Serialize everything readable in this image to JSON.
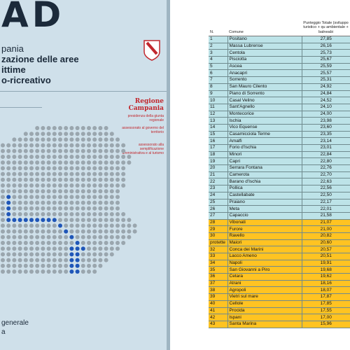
{
  "colors": {
    "cover_bg": "#cfe0ea",
    "region_red": "#c1272d",
    "row_blue": "#bde3e8",
    "row_gold": "#ffc322",
    "map_dot_gray": "#9aa6ae",
    "map_dot_blue": "#1f56b8"
  },
  "cover": {
    "title": "AD",
    "subtitle_lines": [
      "pania",
      "zazione delle aree",
      "ittime",
      "o-ricreativo"
    ],
    "region_name": "Regione Campania",
    "assessorati": [
      "presidenza della giunta regionale",
      "assessorato al governo del territorio",
      "assessorato alla semplificazione amministrativa e al turismo"
    ],
    "footer_lines": [
      "generale",
      "a"
    ]
  },
  "table": {
    "headers": {
      "n": "N.",
      "comune": "Comune",
      "score": "Punteggio Totale (sviluppo turistico + qu ambientale + balneabi"
    },
    "rows": [
      {
        "n": "1",
        "comune": "Positano",
        "score": "27,85",
        "band": "blue"
      },
      {
        "n": "2",
        "comune": "Massa Lubrense",
        "score": "26,16",
        "band": "blue"
      },
      {
        "n": "3",
        "comune": "Centola",
        "score": "25,73",
        "band": "blue"
      },
      {
        "n": "4",
        "comune": "Pisciotta",
        "score": "25,67",
        "band": "blue"
      },
      {
        "n": "5",
        "comune": "Ascea",
        "score": "25,59",
        "band": "blue"
      },
      {
        "n": "6",
        "comune": "Anacapri",
        "score": "25,57",
        "band": "blue"
      },
      {
        "n": "7",
        "comune": "Sorrento",
        "score": "25,31",
        "band": "blue"
      },
      {
        "n": "8",
        "comune": "San Mauro Cilento",
        "score": "24,92",
        "band": "blue"
      },
      {
        "n": "9",
        "comune": "Piano di Sorrento",
        "score": "24,84",
        "band": "blue"
      },
      {
        "n": "10",
        "comune": "Casal Velino",
        "score": "24,52",
        "band": "blue"
      },
      {
        "n": "11",
        "comune": "Sant'Agnello",
        "score": "24,10",
        "band": "blue"
      },
      {
        "n": "12",
        "comune": "Montecorice",
        "score": "24,00",
        "band": "blue"
      },
      {
        "n": "13",
        "comune": "Ischia",
        "score": "23,98",
        "band": "blue"
      },
      {
        "n": "14",
        "comune": "Vico Equense",
        "score": "23,60",
        "band": "blue"
      },
      {
        "n": "15",
        "comune": "Casamicciola Terme",
        "score": "23,35",
        "band": "blue"
      },
      {
        "n": "16",
        "comune": "Amalfi",
        "score": "23,14",
        "band": "blue"
      },
      {
        "n": "17",
        "comune": "Forio d'Ischia",
        "score": "23,01",
        "band": "blue"
      },
      {
        "n": "18",
        "comune": "Minori",
        "score": "22,84",
        "band": "blue"
      },
      {
        "n": "19",
        "comune": "Capri",
        "score": "22,80",
        "band": "blue"
      },
      {
        "n": "20",
        "comune": "Serrara Fontana",
        "score": "22,76",
        "band": "blue"
      },
      {
        "n": "21",
        "comune": "Camerota",
        "score": "22,70",
        "band": "blue"
      },
      {
        "n": "22",
        "comune": "Barano d'Ischia",
        "score": "22,63",
        "band": "blue"
      },
      {
        "n": "23",
        "comune": "Pollica",
        "score": "22,56",
        "band": "blue"
      },
      {
        "n": "24",
        "comune": "Castellabate",
        "score": "22,50",
        "band": "blue"
      },
      {
        "n": "25",
        "comune": "Praiano",
        "score": "22,17",
        "band": "blue"
      },
      {
        "n": "26",
        "comune": "Meta",
        "score": "22,01",
        "band": "blue"
      },
      {
        "n": "27",
        "comune": "Capaccio",
        "score": "21,58",
        "band": "blue"
      },
      {
        "n": "28",
        "comune": "Vibonati",
        "score": "21,07",
        "band": "gold"
      },
      {
        "n": "29",
        "comune": "Furore",
        "score": "21,00",
        "band": "gold"
      },
      {
        "n": "30",
        "comune": "Ravello",
        "score": "20,82",
        "band": "gold"
      },
      {
        "n": "protette",
        "comune": "Maiori",
        "score": "20,60",
        "band": "gold"
      },
      {
        "n": "32",
        "comune": "Conca dei Marini",
        "score": "20,57",
        "band": "gold"
      },
      {
        "n": "33",
        "comune": "Lacco Ameno",
        "score": "20,51",
        "band": "gold"
      },
      {
        "n": "34",
        "comune": "Napoli",
        "score": "19,91",
        "band": "gold"
      },
      {
        "n": "35",
        "comune": "San Giovanni a Piro",
        "score": "19,68",
        "band": "gold"
      },
      {
        "n": "36",
        "comune": "Cetara",
        "score": "19,62",
        "band": "gold"
      },
      {
        "n": "37",
        "comune": "Atrani",
        "score": "18,16",
        "band": "gold"
      },
      {
        "n": "38",
        "comune": "Agropoli",
        "score": "18,07",
        "band": "gold"
      },
      {
        "n": "39",
        "comune": "Vietri sul mare",
        "score": "17,87",
        "band": "gold"
      },
      {
        "n": "40",
        "comune": "Cellole",
        "score": "17,85",
        "band": "gold"
      },
      {
        "n": "41",
        "comune": "Procida",
        "score": "17,55",
        "band": "gold"
      },
      {
        "n": "42",
        "comune": "Ispani",
        "score": "17,00",
        "band": "gold"
      },
      {
        "n": "43",
        "comune": "Santa Marina",
        "score": "15,96",
        "band": "gold"
      }
    ]
  }
}
